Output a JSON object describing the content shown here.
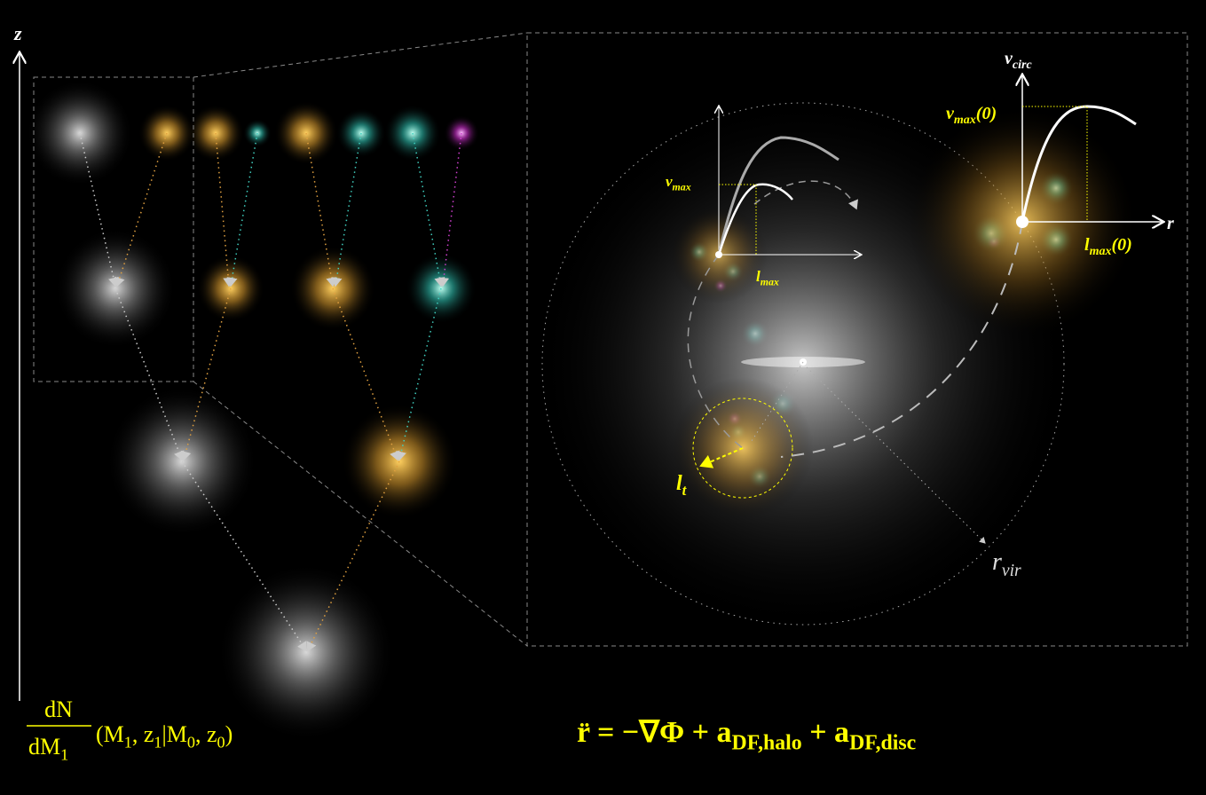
{
  "axis_label_z": "z",
  "mass_function": {
    "numerator": "dN",
    "denominator": [
      {
        "t": "dM",
        "s": "1"
      }
    ],
    "args": [
      {
        "t": "(M",
        "s": "1"
      },
      {
        "t": ", z",
        "s": "1"
      },
      {
        "t": "|M",
        "s": "0"
      },
      {
        "t": ", z",
        "s": "0"
      },
      {
        "t": ")"
      }
    ]
  },
  "equation": [
    {
      "t": "r̈ = −∇Φ  + a",
      "s": "DF,halo"
    },
    {
      "t": " + a",
      "s": "DF,disc"
    }
  ],
  "labels": {
    "v_circ": [
      {
        "t": "v",
        "s": "circ"
      }
    ],
    "v_max0": [
      {
        "t": "v",
        "s": "max",
        "a": "(0)"
      }
    ],
    "r": [
      {
        "t": "r"
      }
    ],
    "l_max0": [
      {
        "t": "l",
        "s": "max",
        "a": "(0)"
      }
    ],
    "v_max": [
      {
        "t": "v",
        "s": "max"
      }
    ],
    "l_max": [
      {
        "t": "l",
        "s": "max"
      }
    ],
    "l_t": [
      {
        "t": "l",
        "s": "t"
      }
    ],
    "r_vir": [
      {
        "t": "r",
        "s": "vir"
      }
    ]
  }
}
